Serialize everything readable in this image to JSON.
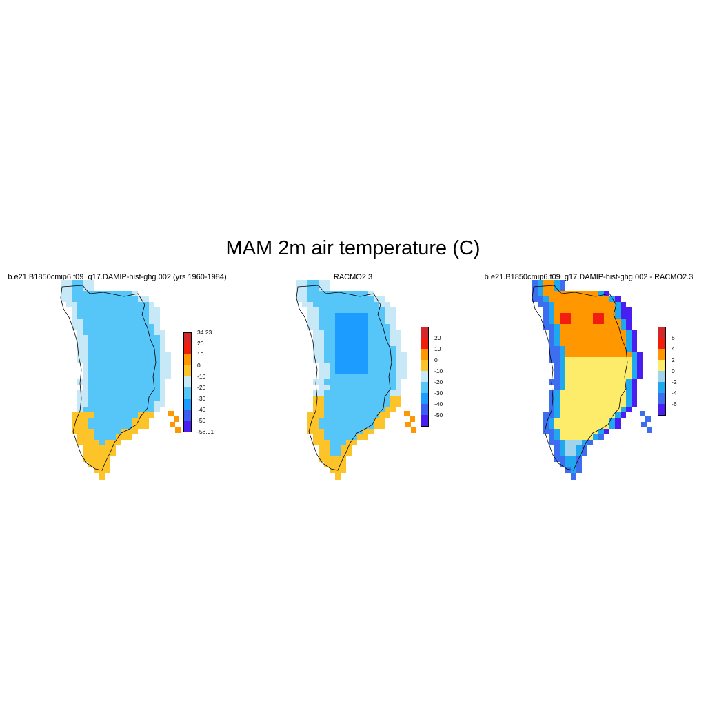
{
  "figure": {
    "title": "MAM 2m air temperature (C)"
  },
  "panels": [
    {
      "title": "b.e21.B1850cmip6.f09_g17.DAMIP-hist-ghg.002 (yrs 1960-1984)",
      "colorbar": {
        "labels": [
          "34.23",
          "20",
          "10",
          "0",
          "-10",
          "-20",
          "-30",
          "-40",
          "-50",
          "-58.01"
        ],
        "colors": [
          "#d62728",
          "#f21d0f",
          "#ff9700",
          "#fdc42a",
          "#c7e9f7",
          "#56c5f8",
          "#1c9cff",
          "#3d5df5",
          "#4a1ef0"
        ]
      },
      "field": "model"
    },
    {
      "title": "RACMO2.3",
      "colorbar": {
        "labels": [
          "20",
          "10",
          "0",
          "-10",
          "-20",
          "-30",
          "-40",
          "-50"
        ],
        "colors": [
          "#d62728",
          "#f21d0f",
          "#ff9700",
          "#fdc42a",
          "#c7e9f7",
          "#56c5f8",
          "#1c9cff",
          "#3d5df5",
          "#4a1ef0"
        ]
      },
      "field": "obs"
    },
    {
      "title": "b.e21.B1850cmip6.f09_g17.DAMIP-hist-ghg.002 - RACMO2.3",
      "colorbar": {
        "labels": [
          "6",
          "4",
          "2",
          "0",
          "-2",
          "-4",
          "-6"
        ],
        "colors": [
          "#d62728",
          "#f21d0f",
          "#ff9700",
          "#fdec6a",
          "#9fd4ee",
          "#1fa8f0",
          "#3d6ef0",
          "#4a1ef0"
        ]
      },
      "field": "diff"
    }
  ]
}
